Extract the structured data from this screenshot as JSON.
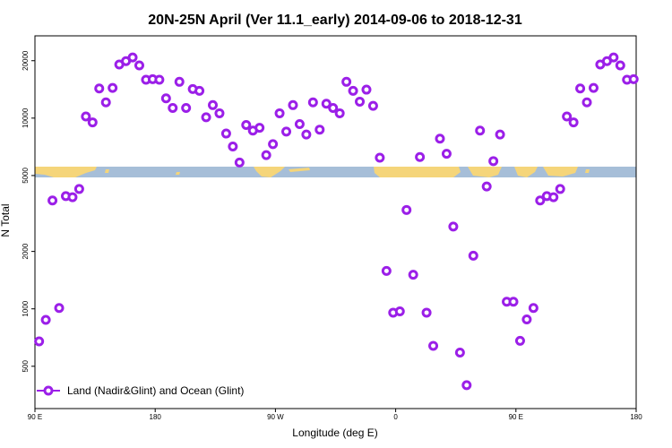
{
  "chart_data": {
    "type": "scatter",
    "title": "20N-25N April (Ver 11.1_early)   2014-09-06 to 2018-12-31",
    "xlabel": "Longitude (deg E)",
    "ylabel": "N Total",
    "yscale": "log",
    "ylim": [
      300,
      27000
    ],
    "xlim": [
      0,
      360
    ],
    "x_ticks": [
      {
        "value": 0,
        "label": "90 E"
      },
      {
        "value": 72,
        "label": "180"
      },
      {
        "value": 144,
        "label": "90 W"
      },
      {
        "value": 216,
        "label": "0"
      },
      {
        "value": 288,
        "label": "90 E"
      },
      {
        "value": 360,
        "label": "180"
      }
    ],
    "y_ticks": [
      {
        "value": 500,
        "label": "500"
      },
      {
        "value": 1000,
        "label": "1000"
      },
      {
        "value": 2000,
        "label": "2000"
      },
      {
        "value": 5000,
        "label": "5000"
      },
      {
        "value": 10000,
        "label": "10000"
      },
      {
        "value": 20000,
        "label": "20000"
      }
    ],
    "legend": {
      "position": "bottom-left",
      "label": "Land (Nadir&Glint) and Ocean (Glint)"
    },
    "series": [
      {
        "name": "Land (Nadir&Glint) and Ocean (Glint)",
        "color": "#9b1fe8",
        "x": [
          2.5,
          6.5,
          10.5,
          14.5,
          18.5,
          22.5,
          26.5,
          30.5,
          34.5,
          38.5,
          42.5,
          46.5,
          50.5,
          54.5,
          58.5,
          62.5,
          66.5,
          70.5,
          74.5,
          78.5,
          82.5,
          86.5,
          90.5,
          94.5,
          98.5,
          102.5,
          106.5,
          110.5,
          114.5,
          118.5,
          122.5,
          126.5,
          130.5,
          134.5,
          138.5,
          142.5,
          146.5,
          150.5,
          154.5,
          158.5,
          162.5,
          166.5,
          170.5,
          174.5,
          178.5,
          182.5,
          186.5,
          190.5,
          194.5,
          198.5,
          202.5,
          206.5,
          210.5,
          214.5,
          218.5,
          222.5,
          226.5,
          230.5,
          234.5,
          238.5,
          242.5,
          246.5,
          250.5,
          254.5,
          258.5,
          262.5,
          266.5,
          270.5,
          274.5,
          278.5,
          282.5,
          286.5,
          290.5,
          294.5,
          298.5,
          302.5,
          306.5,
          310.5,
          314.5,
          318.5,
          322.5,
          326.5,
          330.5,
          334.5,
          338.5,
          342.5,
          346.5,
          350.5,
          354.5,
          358.5
        ],
        "y": [
          675,
          875,
          3700,
          1010,
          3900,
          3850,
          4250,
          10200,
          9500,
          14300,
          12100,
          14400,
          19100,
          19900,
          20800,
          18900,
          15900,
          16000,
          15900,
          12700,
          11300,
          15500,
          11300,
          14200,
          13900,
          10100,
          11700,
          10600,
          8300,
          7100,
          5850,
          9200,
          8600,
          8900,
          6400,
          7300,
          10600,
          8500,
          11700,
          9300,
          8200,
          12100,
          8700,
          11900,
          11300,
          10600,
          15500,
          13900,
          12200,
          14100,
          11600,
          6200,
          1580,
          955,
          970,
          3300,
          1510,
          6250,
          955,
          640,
          7800,
          6500,
          2700,
          590,
          398,
          1900,
          8600,
          4380,
          5950,
          8200,
          1090,
          1090,
          680,
          880,
          1010,
          3700,
          3900,
          3850,
          4250,
          10200,
          9500,
          14300,
          12100,
          14400,
          19100,
          19900,
          20800,
          18900,
          15900,
          16000
        ]
      }
    ]
  }
}
